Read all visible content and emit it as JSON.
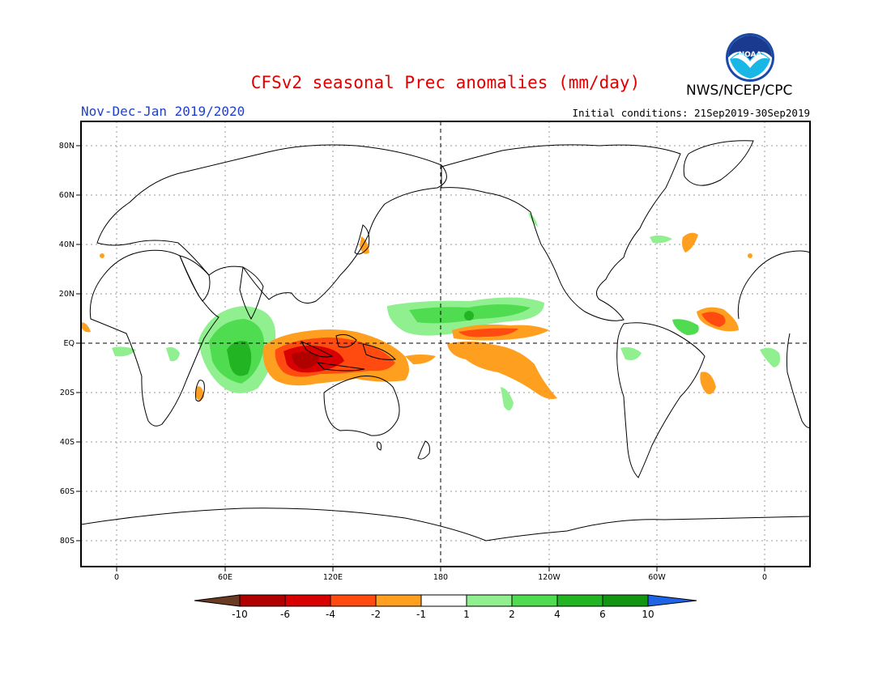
{
  "header": {
    "title": "CFSv2 seasonal Prec anomalies (mm/day)",
    "season": "Nov-Dec-Jan 2019/2020",
    "initial_conditions": "Initial conditions: 21Sep2019-30Sep2019",
    "agency": "NWS/NCEP/CPC",
    "logo_text": "NOAA"
  },
  "map": {
    "projection": "cylindrical equidistant",
    "lon_range": [
      -20,
      380
    ],
    "lat_range": [
      -90,
      90
    ],
    "lat_labels": [
      "80N",
      "60N",
      "40N",
      "20N",
      "EQ",
      "20S",
      "40S",
      "60S",
      "80S"
    ],
    "lon_labels": [
      "0",
      "60E",
      "120E",
      "180",
      "120W",
      "60W",
      "0"
    ]
  },
  "colorbar": {
    "tick_labels": [
      "-10",
      "-6",
      "-4",
      "-2",
      "-1",
      "1",
      "2",
      "4",
      "6",
      "10"
    ],
    "colors": [
      "#6b3a22",
      "#b00000",
      "#d80000",
      "#ff4a10",
      "#ff9f20",
      "#ffffff",
      "#90f090",
      "#50dc50",
      "#22b422",
      "#129612",
      "#1e64e6"
    ]
  }
}
